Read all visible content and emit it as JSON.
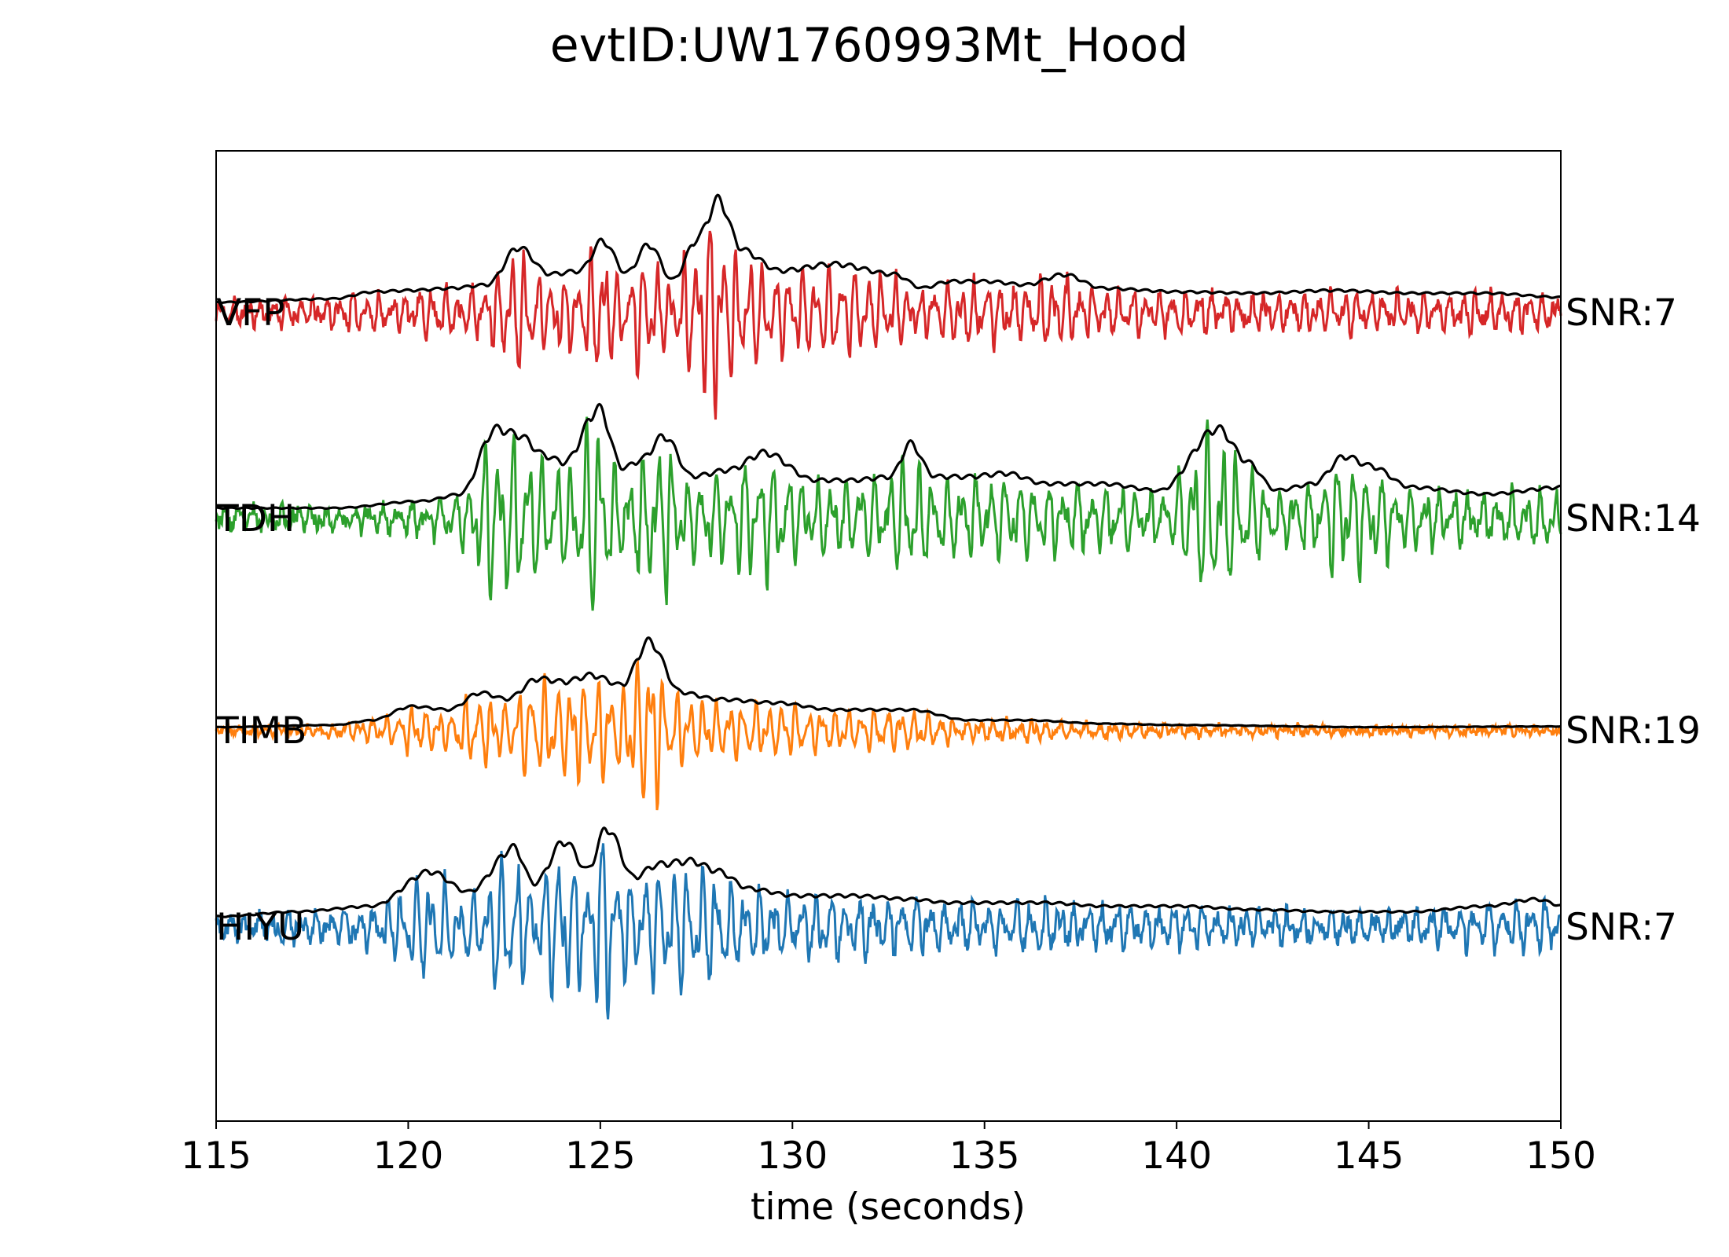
{
  "chart_data": {
    "type": "line",
    "title": "evtID:UW1760993Mt_Hood",
    "xlabel": "time (seconds)",
    "ylabel": "",
    "xlim": [
      115,
      150
    ],
    "x_ticks": [
      115,
      120,
      125,
      130,
      135,
      140,
      145,
      150
    ],
    "y_ticks_visible": false,
    "grid": false,
    "envelope_color": "#000000",
    "series": [
      {
        "name": "VFP",
        "snr_label": "SNR:7",
        "color": "#d62728",
        "seed": 11,
        "noise": 0.18,
        "envelope_points": [
          [
            115,
            0.15
          ],
          [
            118,
            0.2
          ],
          [
            119,
            0.3
          ],
          [
            120,
            0.32
          ],
          [
            121,
            0.35
          ],
          [
            122,
            0.4
          ],
          [
            122.8,
            0.95
          ],
          [
            123.6,
            0.55
          ],
          [
            124.4,
            0.6
          ],
          [
            125.0,
            1.05
          ],
          [
            125.6,
            0.55
          ],
          [
            126.2,
            1.0
          ],
          [
            126.8,
            0.45
          ],
          [
            127.5,
            1.1
          ],
          [
            128.0,
            1.65
          ],
          [
            128.6,
            0.9
          ],
          [
            129.6,
            0.6
          ],
          [
            131,
            0.7
          ],
          [
            132.6,
            0.55
          ],
          [
            133.3,
            0.35
          ],
          [
            134,
            0.45
          ],
          [
            135,
            0.45
          ],
          [
            136,
            0.4
          ],
          [
            137,
            0.55
          ],
          [
            138,
            0.35
          ],
          [
            140,
            0.3
          ],
          [
            142,
            0.28
          ],
          [
            144,
            0.32
          ],
          [
            146,
            0.28
          ],
          [
            148,
            0.28
          ],
          [
            150,
            0.22
          ]
        ]
      },
      {
        "name": "TDH",
        "snr_label": "SNR:14",
        "color": "#2ca02c",
        "seed": 23,
        "noise": 0.2,
        "envelope_points": [
          [
            115,
            0.15
          ],
          [
            118,
            0.15
          ],
          [
            120.3,
            0.25
          ],
          [
            121.3,
            0.35
          ],
          [
            122.2,
            1.3
          ],
          [
            122.8,
            1.2
          ],
          [
            123.5,
            0.9
          ],
          [
            124.0,
            0.8
          ],
          [
            124.9,
            1.6
          ],
          [
            125.5,
            0.7
          ],
          [
            126.0,
            0.85
          ],
          [
            126.6,
            1.2
          ],
          [
            127.3,
            0.6
          ],
          [
            128.3,
            0.7
          ],
          [
            129.2,
            0.95
          ],
          [
            130.5,
            0.55
          ],
          [
            131.5,
            0.55
          ],
          [
            132.5,
            0.6
          ],
          [
            133.0,
            1.1
          ],
          [
            133.6,
            0.6
          ],
          [
            134.5,
            0.6
          ],
          [
            135.5,
            0.65
          ],
          [
            136.5,
            0.5
          ],
          [
            138,
            0.5
          ],
          [
            139.5,
            0.4
          ],
          [
            141.0,
            1.3
          ],
          [
            141.8,
            0.8
          ],
          [
            142.5,
            0.4
          ],
          [
            143.5,
            0.5
          ],
          [
            144.3,
            0.9
          ],
          [
            145.0,
            0.75
          ],
          [
            146.0,
            0.45
          ],
          [
            148,
            0.35
          ],
          [
            150,
            0.45
          ]
        ]
      },
      {
        "name": "TIMB",
        "snr_label": "SNR:19",
        "color": "#ff7f0e",
        "seed": 37,
        "noise": 0.1,
        "envelope_points": [
          [
            115,
            0.05
          ],
          [
            118,
            0.08
          ],
          [
            119,
            0.15
          ],
          [
            120,
            0.35
          ],
          [
            121,
            0.3
          ],
          [
            121.8,
            0.55
          ],
          [
            122.5,
            0.45
          ],
          [
            123.3,
            0.75
          ],
          [
            124.0,
            0.7
          ],
          [
            124.7,
            0.8
          ],
          [
            125.5,
            0.65
          ],
          [
            126.2,
            1.3
          ],
          [
            127.0,
            0.55
          ],
          [
            128,
            0.45
          ],
          [
            129.5,
            0.4
          ],
          [
            131,
            0.3
          ],
          [
            133,
            0.3
          ],
          [
            134.5,
            0.15
          ],
          [
            136,
            0.15
          ],
          [
            138,
            0.1
          ],
          [
            140,
            0.08
          ],
          [
            145,
            0.05
          ],
          [
            150,
            0.06
          ]
        ]
      },
      {
        "name": "HIYU",
        "snr_label": "SNR:7",
        "color": "#1f77b4",
        "seed": 51,
        "noise": 0.22,
        "envelope_points": [
          [
            115,
            0.15
          ],
          [
            117,
            0.22
          ],
          [
            119,
            0.3
          ],
          [
            120.5,
            0.8
          ],
          [
            121.5,
            0.5
          ],
          [
            122.7,
            1.15
          ],
          [
            123.2,
            0.6
          ],
          [
            124.0,
            1.25
          ],
          [
            124.6,
            0.8
          ],
          [
            125.1,
            1.45
          ],
          [
            125.8,
            0.7
          ],
          [
            126.4,
            0.9
          ],
          [
            127.3,
            0.95
          ],
          [
            128.0,
            0.8
          ],
          [
            128.8,
            0.55
          ],
          [
            130,
            0.45
          ],
          [
            131.5,
            0.45
          ],
          [
            133,
            0.4
          ],
          [
            134,
            0.35
          ],
          [
            135.5,
            0.35
          ],
          [
            136.5,
            0.35
          ],
          [
            138,
            0.3
          ],
          [
            140,
            0.3
          ],
          [
            142,
            0.25
          ],
          [
            144,
            0.22
          ],
          [
            146,
            0.22
          ],
          [
            148,
            0.3
          ],
          [
            149.3,
            0.4
          ],
          [
            150,
            0.3
          ]
        ]
      }
    ]
  }
}
